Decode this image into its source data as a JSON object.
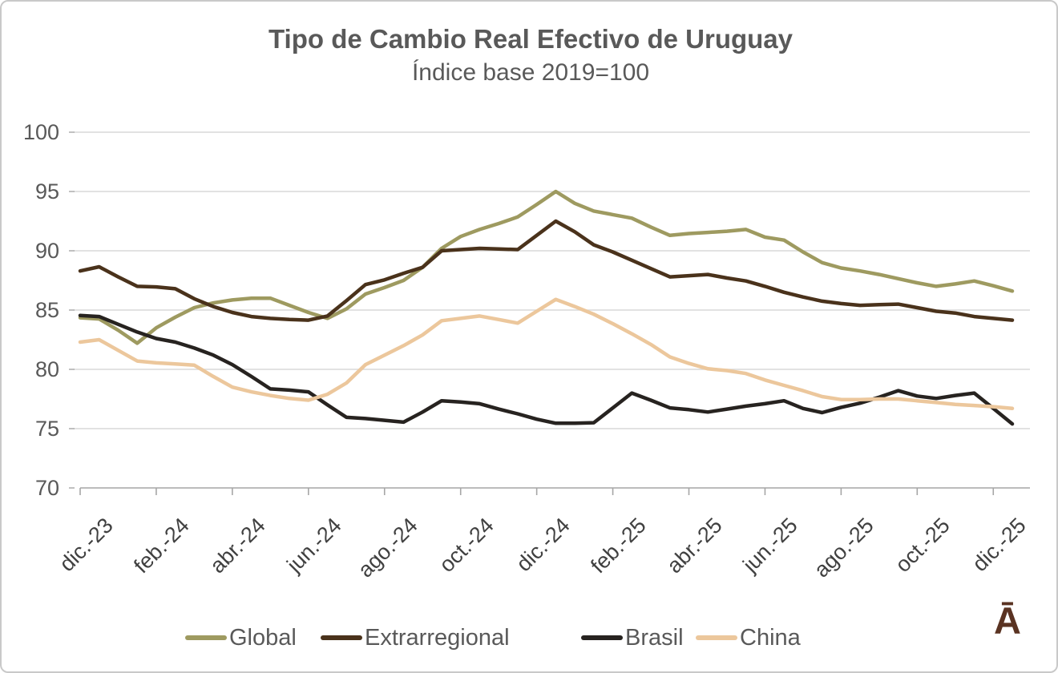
{
  "title": "Tipo de Cambio Real Efectivo de Uruguay",
  "subtitle": "Índice base 2019=100",
  "logo_text": "Ā",
  "colors": {
    "global": "#9E9A60",
    "extrarregional": "#4A321B",
    "brasil": "#272320",
    "china": "#ECC79C",
    "gridline": "#D9D9D9",
    "axis": "#A6A6A6",
    "title_text": "#595959",
    "axis_text": "#404040",
    "logo": "#5a3322"
  },
  "legend": {
    "items": [
      {
        "label": "Global",
        "color": "#9E9A60"
      },
      {
        "label": "Extrarregional",
        "color": "#4A321B"
      },
      {
        "label": "Brasil",
        "color": "#272320"
      },
      {
        "label": "China",
        "color": "#ECC79C"
      }
    ]
  },
  "chart_data": {
    "type": "line",
    "title": "Tipo de Cambio Real Efectivo de Uruguay",
    "subtitle": "Índice base 2019=100",
    "ylabel": "",
    "xlabel": "",
    "ylim": [
      70,
      100
    ],
    "y_ticks": [
      100,
      95,
      90,
      85,
      80,
      75,
      70
    ],
    "grid": "horizontal",
    "legend_position": "bottom",
    "x_tick_labels": [
      "dic.-23",
      "feb.-24",
      "abr.-24",
      "jun.-24",
      "ago.-24",
      "oct.-24",
      "dic.-24",
      "feb.-25",
      "abr.-25",
      "jun.-25",
      "ago.-25",
      "oct.-25",
      "dic.-25"
    ],
    "points_per_month": 2,
    "series": [
      {
        "name": "Global",
        "color": "#9E9A60",
        "values": [
          84.35,
          84.25,
          83.3,
          82.2,
          83.5,
          84.4,
          85.2,
          85.6,
          85.85,
          86.0,
          86.0,
          85.4,
          84.8,
          84.3,
          85.1,
          86.35,
          86.9,
          87.5,
          88.6,
          90.2,
          91.2,
          91.8,
          92.3,
          92.85,
          93.9,
          95.0,
          94.0,
          93.35,
          93.05,
          92.75,
          92.0,
          91.3,
          91.45,
          91.55,
          91.65,
          91.8,
          91.15,
          90.9,
          89.9,
          89.0,
          88.55,
          88.3,
          88.0,
          87.65,
          87.3,
          87.0,
          87.2,
          87.45,
          87.05,
          86.6
        ]
      },
      {
        "name": "Extrarregional",
        "color": "#4A321B",
        "values": [
          88.3,
          88.65,
          87.8,
          87.0,
          86.95,
          86.8,
          85.95,
          85.3,
          84.8,
          84.45,
          84.3,
          84.2,
          84.15,
          84.5,
          85.8,
          87.15,
          87.55,
          88.1,
          88.6,
          90.0,
          90.1,
          90.2,
          90.15,
          90.1,
          91.3,
          92.5,
          91.6,
          90.5,
          89.9,
          89.2,
          88.5,
          87.8,
          87.9,
          88.0,
          87.7,
          87.45,
          87.0,
          86.5,
          86.1,
          85.75,
          85.55,
          85.4,
          85.45,
          85.5,
          85.2,
          84.9,
          84.75,
          84.45,
          84.3,
          84.15
        ]
      },
      {
        "name": "Brasil",
        "color": "#272320",
        "values": [
          84.55,
          84.45,
          83.8,
          83.15,
          82.6,
          82.3,
          81.8,
          81.2,
          80.4,
          79.4,
          78.35,
          78.25,
          78.1,
          77.0,
          75.95,
          75.85,
          75.7,
          75.55,
          76.4,
          77.35,
          77.25,
          77.1,
          76.65,
          76.25,
          75.8,
          75.45,
          75.45,
          75.5,
          76.75,
          78.0,
          77.4,
          76.75,
          76.6,
          76.4,
          76.65,
          76.9,
          77.1,
          77.35,
          76.7,
          76.35,
          76.8,
          77.15,
          77.65,
          78.2,
          77.75,
          77.55,
          77.8,
          78.0,
          76.7,
          75.4
        ]
      },
      {
        "name": "China",
        "color": "#ECC79C",
        "values": [
          82.3,
          82.5,
          81.6,
          80.7,
          80.55,
          80.45,
          80.35,
          79.4,
          78.5,
          78.1,
          77.8,
          77.55,
          77.4,
          77.9,
          78.85,
          80.4,
          81.2,
          82.0,
          82.9,
          84.1,
          84.3,
          84.5,
          84.2,
          83.9,
          84.9,
          85.9,
          85.3,
          84.65,
          83.85,
          83.0,
          82.1,
          81.05,
          80.5,
          80.05,
          79.9,
          79.65,
          79.1,
          78.65,
          78.2,
          77.7,
          77.45,
          77.45,
          77.5,
          77.5,
          77.35,
          77.2,
          77.05,
          76.95,
          76.85,
          76.7
        ]
      }
    ]
  }
}
